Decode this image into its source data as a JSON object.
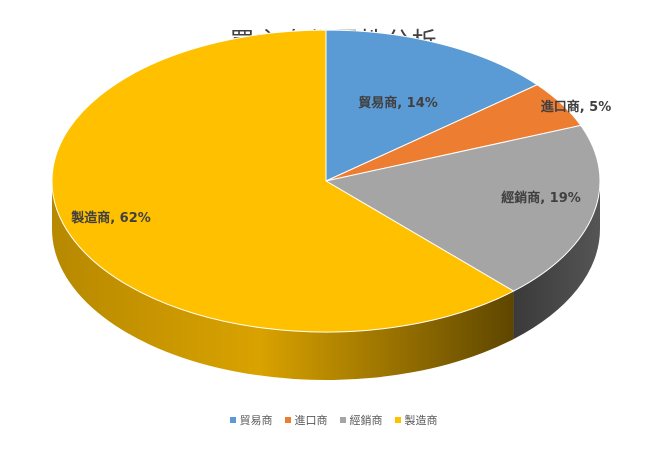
{
  "chart_data": {
    "type": "pie",
    "title": "買主身份屬性分析",
    "categories": [
      "貿易商",
      "進口商",
      "經銷商",
      "製造商"
    ],
    "values": [
      14,
      5,
      19,
      62
    ],
    "value_format": "percent",
    "data_labels": [
      "貿易商, 14%",
      "進口商, 5%",
      "經銷商, 19%",
      "製造商, 62%"
    ],
    "colors": [
      "#5B9BD5",
      "#ED7D31",
      "#A5A5A5",
      "#FFC000"
    ],
    "style": "3d",
    "legend_position": "bottom"
  }
}
